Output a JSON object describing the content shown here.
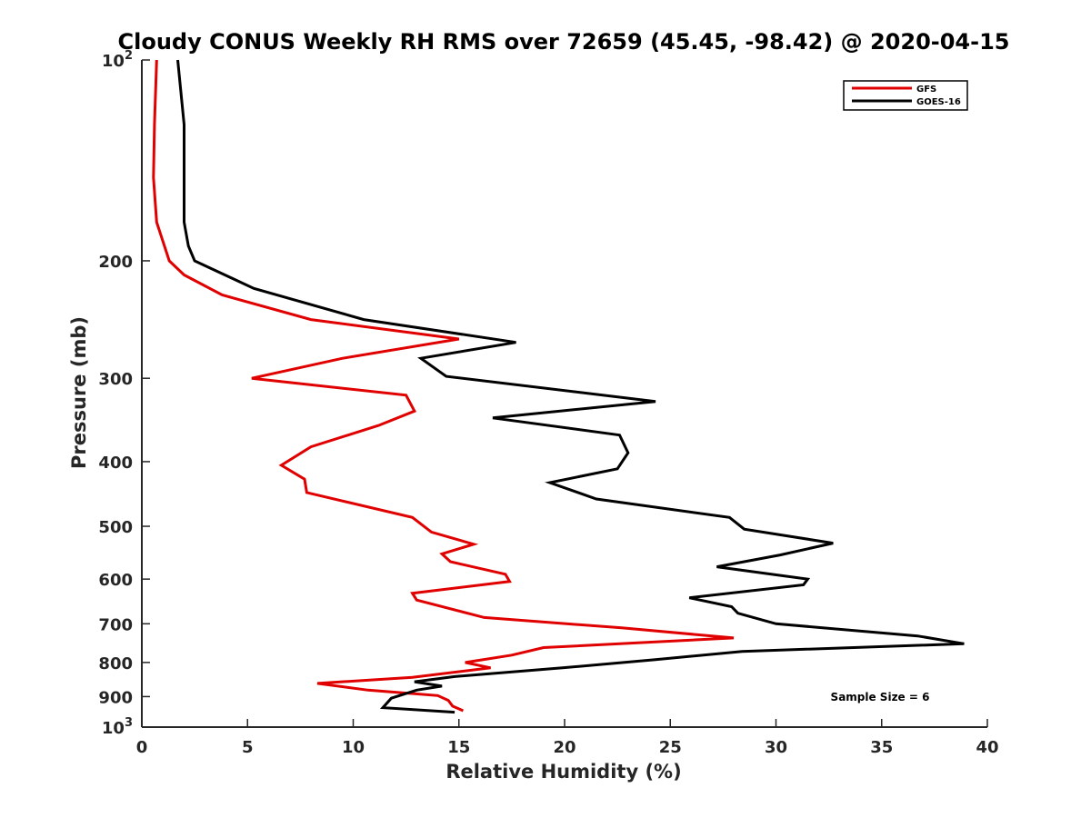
{
  "chart_data": {
    "type": "line",
    "title": "Cloudy CONUS Weekly RH RMS over 72659 (45.45, -98.42) @ 2020-04-15",
    "xlabel": "Relative Humidity (%)",
    "ylabel": "Pressure (mb)",
    "xlim": [
      0,
      40
    ],
    "ylim": [
      100,
      1000
    ],
    "y_scale": "log",
    "y_reversed": true,
    "grid": false,
    "legend_position": "top-right",
    "x_ticks": [
      {
        "value": 0,
        "label": "0"
      },
      {
        "value": 5,
        "label": "5"
      },
      {
        "value": 10,
        "label": "10"
      },
      {
        "value": 15,
        "label": "15"
      },
      {
        "value": 20,
        "label": "20"
      },
      {
        "value": 25,
        "label": "25"
      },
      {
        "value": 30,
        "label": "30"
      },
      {
        "value": 35,
        "label": "35"
      },
      {
        "value": 40,
        "label": "40"
      }
    ],
    "y_ticks": [
      {
        "value": 100,
        "base": "10",
        "exp": "2"
      },
      {
        "value": 200,
        "label": "200"
      },
      {
        "value": 300,
        "label": "300"
      },
      {
        "value": 400,
        "label": "400"
      },
      {
        "value": 500,
        "label": "500"
      },
      {
        "value": 600,
        "label": "600"
      },
      {
        "value": 700,
        "label": "700"
      },
      {
        "value": 800,
        "label": "800"
      },
      {
        "value": 900,
        "label": "900"
      },
      {
        "value": 1000,
        "base": "10",
        "exp": "3"
      }
    ],
    "series": [
      {
        "name": "GFS",
        "color": "#e00000",
        "points": [
          [
            0.7,
            100
          ],
          [
            0.6,
            125
          ],
          [
            0.55,
            150
          ],
          [
            0.7,
            175
          ],
          [
            1.3,
            200
          ],
          [
            2.0,
            210
          ],
          [
            3.8,
            225
          ],
          [
            8.0,
            245
          ],
          [
            15.0,
            262
          ],
          [
            9.5,
            280
          ],
          [
            5.2,
            300
          ],
          [
            12.5,
            318
          ],
          [
            12.9,
            336
          ],
          [
            11.2,
            353
          ],
          [
            8.0,
            380
          ],
          [
            6.6,
            405
          ],
          [
            7.7,
            425
          ],
          [
            7.8,
            445
          ],
          [
            12.8,
            485
          ],
          [
            13.7,
            510
          ],
          [
            15.7,
            532
          ],
          [
            14.2,
            550
          ],
          [
            14.6,
            565
          ],
          [
            17.2,
            590
          ],
          [
            17.4,
            605
          ],
          [
            12.8,
            630
          ],
          [
            13.0,
            645
          ],
          [
            16.2,
            685
          ],
          [
            22.7,
            710
          ],
          [
            28.0,
            735
          ],
          [
            19.0,
            760
          ],
          [
            17.5,
            780
          ],
          [
            15.3,
            800
          ],
          [
            16.5,
            815
          ],
          [
            12.8,
            842
          ],
          [
            8.3,
            860
          ],
          [
            10.7,
            880
          ],
          [
            14.0,
            897
          ],
          [
            14.5,
            912
          ],
          [
            14.7,
            930
          ],
          [
            15.2,
            945
          ]
        ]
      },
      {
        "name": "GOES-16",
        "color": "#000000",
        "points": [
          [
            1.7,
            100
          ],
          [
            2.0,
            125
          ],
          [
            2.0,
            150
          ],
          [
            2.0,
            175
          ],
          [
            2.2,
            190
          ],
          [
            2.5,
            200
          ],
          [
            5.3,
            220
          ],
          [
            10.5,
            245
          ],
          [
            17.7,
            265
          ],
          [
            13.2,
            280
          ],
          [
            14.4,
            298
          ],
          [
            24.3,
            325
          ],
          [
            16.6,
            344
          ],
          [
            22.6,
            365
          ],
          [
            23.0,
            388
          ],
          [
            22.5,
            410
          ],
          [
            19.3,
            430
          ],
          [
            21.5,
            455
          ],
          [
            27.8,
            485
          ],
          [
            28.5,
            505
          ],
          [
            32.7,
            530
          ],
          [
            30.2,
            552
          ],
          [
            27.2,
            575
          ],
          [
            31.5,
            600
          ],
          [
            31.3,
            612
          ],
          [
            25.9,
            640
          ],
          [
            27.9,
            660
          ],
          [
            28.2,
            675
          ],
          [
            30.0,
            700
          ],
          [
            36.7,
            730
          ],
          [
            38.9,
            750
          ],
          [
            28.4,
            770
          ],
          [
            24.3,
            792
          ],
          [
            19.9,
            815
          ],
          [
            14.8,
            840
          ],
          [
            12.9,
            855
          ],
          [
            14.2,
            868
          ],
          [
            13.0,
            880
          ],
          [
            11.8,
            905
          ],
          [
            11.4,
            935
          ],
          [
            14.8,
            950
          ]
        ]
      }
    ],
    "annotation": "Sample Size = 6"
  }
}
